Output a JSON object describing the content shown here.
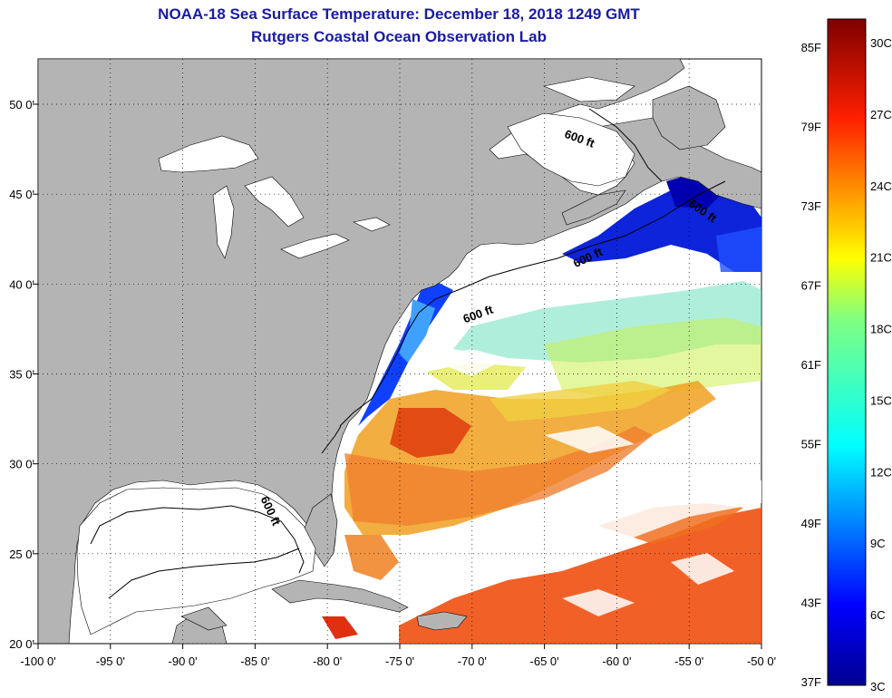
{
  "title_line1": "NOAA-18 Sea Surface Temperature:  December 18, 2018 1249 GMT",
  "title_line2": "Rutgers Coastal Ocean Observation Lab",
  "lon_labels": [
    "-100 0'",
    "-95 0'",
    "-90 0'",
    "-85 0'",
    "-80 0'",
    "-75 0'",
    "-70 0'",
    "-65 0'",
    "-60 0'",
    "-55 0'",
    "-50 0'"
  ],
  "lat_labels": [
    "50 0'",
    "45 0'",
    "40 0'",
    "35 0'",
    "30 0'",
    "25 0'",
    "20 0'"
  ],
  "contour_labels": [
    "600 ft",
    "600 ft",
    "600 ft",
    "600 ft",
    "600 ft"
  ],
  "colorbar": {
    "f_labels": [
      "85F",
      "79F",
      "73F",
      "67F",
      "61F",
      "55F",
      "49F",
      "43F",
      "37F"
    ],
    "c_labels": [
      "30C",
      "27C",
      "24C",
      "21C",
      "18C",
      "15C",
      "12C",
      "9C",
      "6C",
      "3C"
    ]
  },
  "colors": {
    "land": "#b4b4b4",
    "title": "#1a1aa6",
    "grid": "#000000"
  }
}
